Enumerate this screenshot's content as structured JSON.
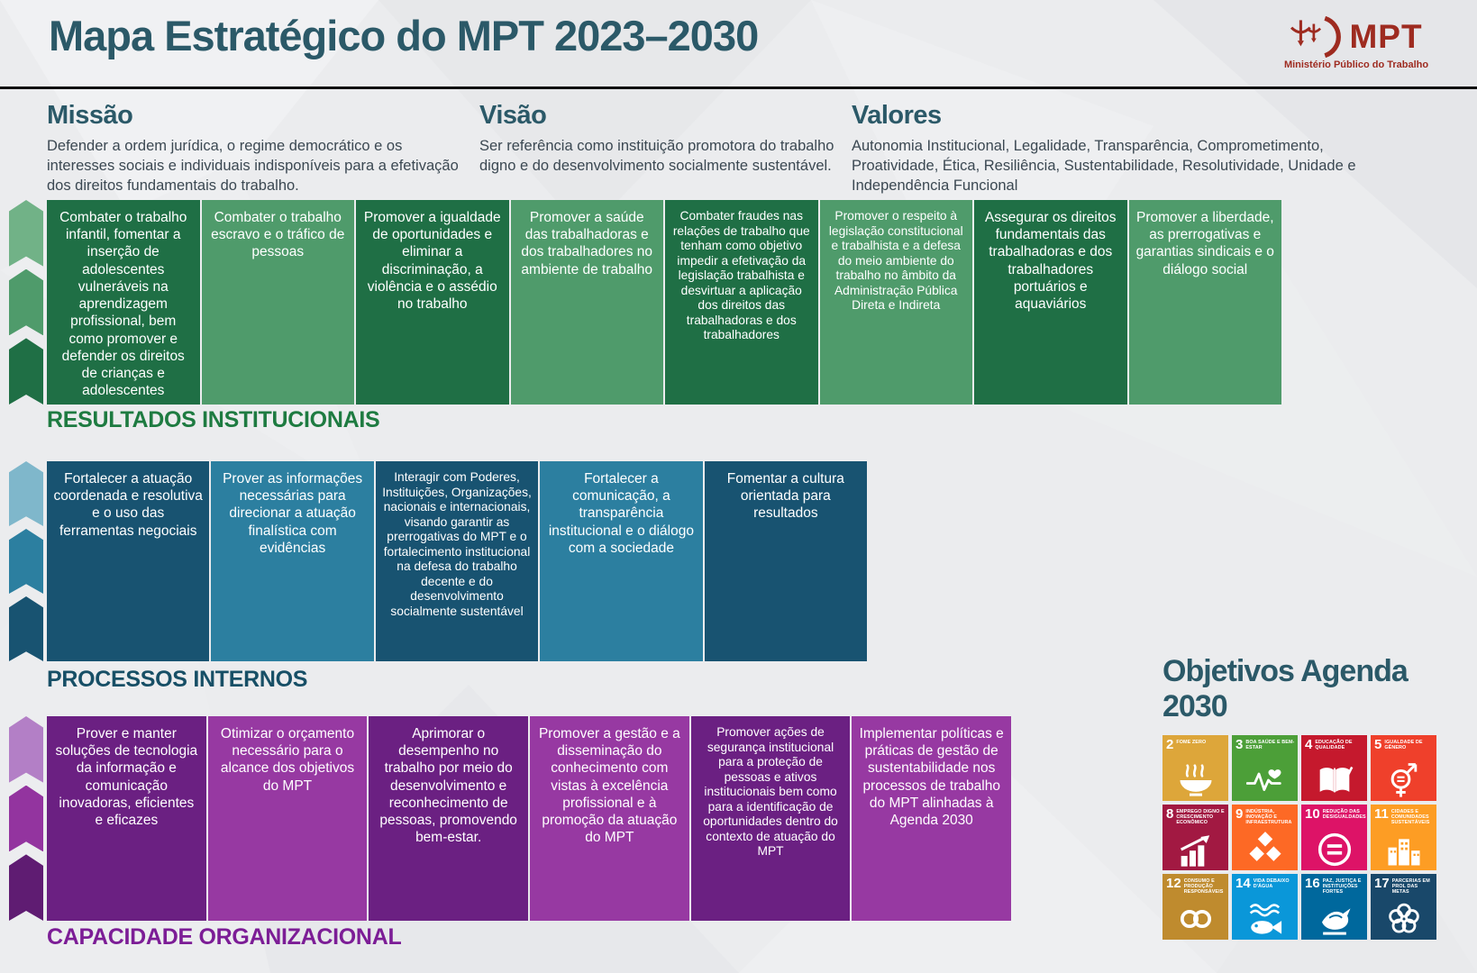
{
  "header": {
    "title": "Mapa Estratégico do MPT 2023–2030",
    "logo": {
      "acronym": "MPT",
      "subtitle": "Ministério Público do Trabalho",
      "color": "#9e2b20"
    }
  },
  "statements": [
    {
      "heading": "Missão",
      "text": "Defender a ordem jurídica, o regime democrático e os interesses sociais e individuais indisponíveis para a efetivação dos direitos fundamentais do trabalho."
    },
    {
      "heading": "Visão",
      "text": "Ser referência como instituição promotora do trabalho digno e do desenvolvimento socialmente sustentável."
    },
    {
      "heading": "Valores",
      "text": "Autonomia Institucional, Legalidade, Transparência, Comprometimento, Proatividade, Ética, Resiliência, Sustentabilidade, Resolutividade, Unidade e Independência Funcional"
    }
  ],
  "sections": [
    {
      "id": "resultados",
      "label": "RESULTADOS INSTITUCIONAIS",
      "colors": {
        "dark": "#1f6f45",
        "light": "#4f9b6b",
        "label": "#1e7b41",
        "chevrons": [
          "#71b287",
          "#4f9b6b",
          "#1f6f45"
        ]
      },
      "items": [
        {
          "text": "Combater o trabalho infantil, fomentar a inserção de adolescentes vulneráveis na aprendizagem profissional, bem como promover e defender os direitos de crianças e adolescentes"
        },
        {
          "text": "Combater o trabalho escravo e o tráfico de pessoas"
        },
        {
          "text": "Promover a igualdade de oportunidades e eliminar a discriminação, a violência e o assédio no trabalho"
        },
        {
          "text": "Promover a saúde das trabalhadoras e dos trabalhadores no ambiente de trabalho"
        },
        {
          "text": "Combater fraudes nas relações de trabalho que tenham como objetivo impedir a efetivação da legislação trabalhista e desvirtuar a aplicação dos direitos das trabalhadoras e dos trabalhadores",
          "compact": true
        },
        {
          "text": "Promover o respeito à legislação constitucional e trabalhista e a defesa do meio ambiente do trabalho no âmbito da Administração Pública Direta e Indireta",
          "compact": true
        },
        {
          "text": "Assegurar os direitos fundamentais das trabalhadoras e dos trabalhadores portuários e aquaviários"
        },
        {
          "text": "Promover a liberdade, as prerrogativas e garantias sindicais e o diálogo social"
        }
      ]
    },
    {
      "id": "processos",
      "label": "PROCESSOS INTERNOS",
      "colors": {
        "dark": "#185371",
        "light": "#2c7fa0",
        "label": "#174f66",
        "chevrons": [
          "#7fb7cb",
          "#2c7fa0",
          "#185371"
        ]
      },
      "items": [
        {
          "text": "Fortalecer a atuação coordenada e resolutiva e o uso das ferramentas negociais"
        },
        {
          "text": "Prover as informações necessárias para direcionar a atuação finalística com evidências"
        },
        {
          "text": "Interagir com Poderes, Instituições, Organizações, nacionais e internacionais, visando garantir as prerrogativas do MPT e o fortalecimento institucional na defesa do trabalho decente e do desenvolvimento socialmente sustentável",
          "compact": true
        },
        {
          "text": "Fortalecer a comunicação, a transparência institucional e o diálogo com a sociedade"
        },
        {
          "text": "Fomentar a cultura orientada para resultados"
        }
      ]
    },
    {
      "id": "capacidade",
      "label": "CAPACIDADE ORGANIZACIONAL",
      "colors": {
        "dark": "#6b2082",
        "light": "#9739a2",
        "label": "#7c1d96",
        "chevrons": [
          "#b37fc6",
          "#93349f",
          "#5f1c72"
        ]
      },
      "items": [
        {
          "text": "Prover e manter soluções de tecnologia da informação e comunicação inovadoras, eficientes e eficazes"
        },
        {
          "text": "Otimizar o orçamento necessário para o alcance dos objetivos do MPT"
        },
        {
          "text": "Aprimorar o desempenho no trabalho por meio do desenvolvimento e reconhecimento de pessoas, promovendo bem-estar."
        },
        {
          "text": "Promover a gestão e a disseminação do conhecimento com vistas à excelência profissional e à promoção da atuação do MPT"
        },
        {
          "text": "Promover ações de segurança institucional para a proteção de pessoas e ativos institucionais bem como para a identificação de oportunidades dentro do contexto de atuação do MPT",
          "compact": true
        },
        {
          "text": "Implementar políticas e práticas de gestão de sustentabilidade nos processos de trabalho do MPT alinhadas à Agenda 2030"
        }
      ]
    }
  ],
  "agenda2030": {
    "title": "Objetivos Agenda 2030",
    "goals": [
      {
        "number": "2",
        "label": "FOME ZERO",
        "color": "#dda63a",
        "icon": "bowl-icon"
      },
      {
        "number": "3",
        "label": "BOA SAÚDE E BEM-ESTAR",
        "color": "#4c9f38",
        "icon": "heartbeat-icon"
      },
      {
        "number": "4",
        "label": "EDUCAÇÃO DE QUALIDADE",
        "color": "#c5192d",
        "icon": "book-icon"
      },
      {
        "number": "5",
        "label": "IGUALDADE DE GÊNERO",
        "color": "#ef402b",
        "icon": "gender-icon"
      },
      {
        "number": "8",
        "label": "EMPREGO DIGNO E CRESCIMENTO ECONÔMICO",
        "color": "#a21942",
        "icon": "growth-chart-icon"
      },
      {
        "number": "9",
        "label": "INDÚSTRIA, INOVAÇÃO E INFRAESTRUTURA",
        "color": "#fd6925",
        "icon": "cubes-icon"
      },
      {
        "number": "10",
        "label": "REDUÇÃO DAS DESIGUALDADES",
        "color": "#dd1367",
        "icon": "equality-icon"
      },
      {
        "number": "11",
        "label": "CIDADES E COMUNIDADES SUSTENTÁVEIS",
        "color": "#fd9d24",
        "icon": "city-icon"
      },
      {
        "number": "12",
        "label": "CONSUMO E PRODUÇÃO RESPONSÁVEIS",
        "color": "#bf8b2e",
        "icon": "infinity-icon"
      },
      {
        "number": "14",
        "label": "VIDA DEBAIXO D'ÁGUA",
        "color": "#0a97d9",
        "icon": "fish-icon"
      },
      {
        "number": "16",
        "label": "PAZ, JUSTIÇA E INSTITUIÇÕES FORTES",
        "color": "#00689d",
        "icon": "dove-icon"
      },
      {
        "number": "17",
        "label": "PARCERIAS EM PROL DAS METAS",
        "color": "#19486a",
        "icon": "wheel-icon"
      }
    ]
  }
}
